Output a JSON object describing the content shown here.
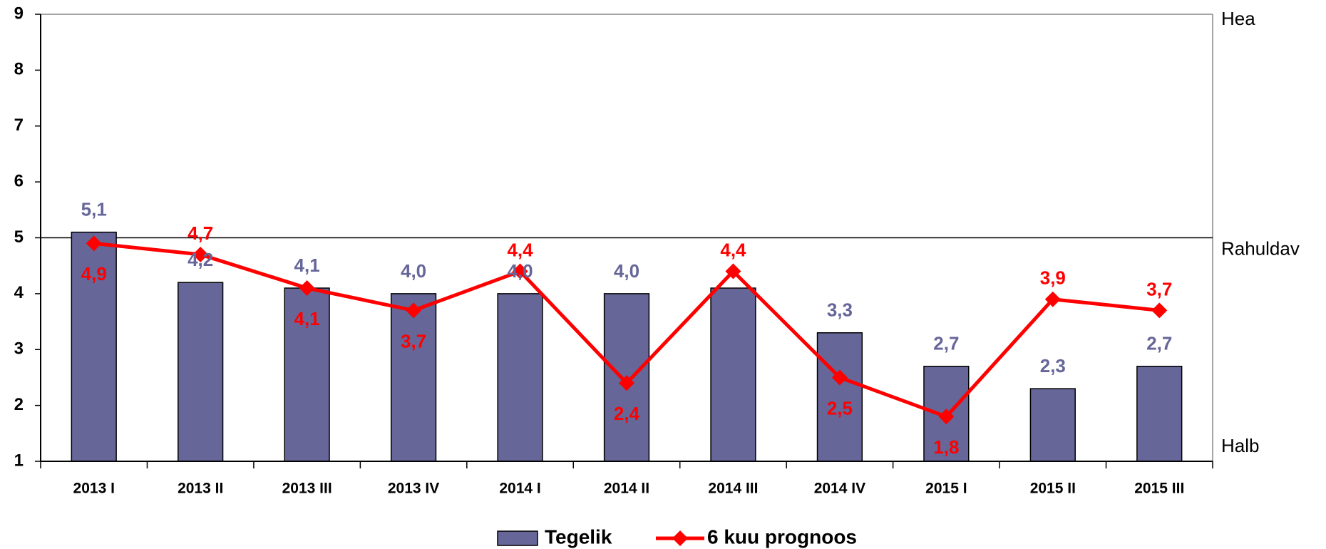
{
  "chart_data": {
    "type": "bar+line",
    "categories": [
      "2013 I",
      "2013 II",
      "2013 III",
      "2013 IV",
      "2014 I",
      "2014 II",
      "2014 III",
      "2014 IV",
      "2015 I",
      "2015 II",
      "2015 III"
    ],
    "series": [
      {
        "name": "Tegelik",
        "type": "bar",
        "color": "#666699",
        "values": [
          5.1,
          4.2,
          4.1,
          4.0,
          4.0,
          4.0,
          4.1,
          3.3,
          2.7,
          2.3,
          2.7
        ],
        "value_labels": [
          "5,1",
          "4,2",
          "4,1",
          "4,0",
          "4,0",
          "4,0",
          null,
          "3,3",
          "2,7",
          "2,3",
          "2,7"
        ]
      },
      {
        "name": "6 kuu prognoos",
        "type": "line",
        "color": "#ff0000",
        "values": [
          4.9,
          4.7,
          4.1,
          3.7,
          4.4,
          2.4,
          4.4,
          2.5,
          1.8,
          3.9,
          3.7
        ],
        "value_labels": [
          "4,9",
          "4,7",
          "4,1",
          "3,7",
          "4,4",
          "2,4",
          "4,4",
          "2,5",
          "1,8",
          "3,9",
          "3,7"
        ]
      }
    ],
    "ylim": [
      1,
      9
    ],
    "yticks": [
      1,
      2,
      3,
      4,
      5,
      6,
      7,
      8,
      9
    ],
    "annotations": [
      {
        "value": 9,
        "label": "Hea"
      },
      {
        "value": 5,
        "label": "Rahuldav"
      },
      {
        "value": 1,
        "label": "Halb"
      }
    ],
    "legend": "bottom"
  }
}
